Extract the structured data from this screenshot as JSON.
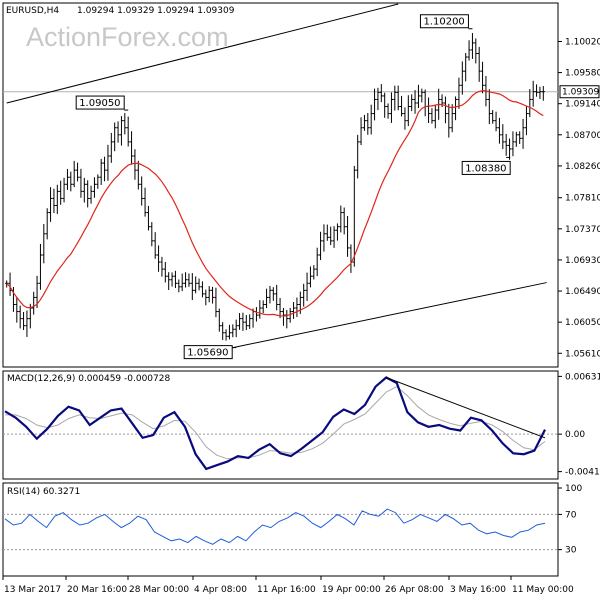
{
  "header": {
    "symbol": "EURUSD,H4",
    "ohlc": "1.09294 1.09329 1.09294 1.09309"
  },
  "watermark": "ActionForex.com",
  "chart_data": [
    {
      "type": "candlestick",
      "panel": "price",
      "ylim": [
        1.0543,
        1.1055
      ],
      "y_ticks": [
        "1.10020",
        "1.09580",
        "1.09140",
        "1.08700",
        "1.08260",
        "1.07810",
        "1.07370",
        "1.06930",
        "1.06490",
        "1.06050",
        "1.05610"
      ],
      "y_tick_values": [
        1.1002,
        1.0958,
        1.0914,
        1.087,
        1.0826,
        1.0781,
        1.0737,
        1.0693,
        1.0649,
        1.0605,
        1.0561
      ],
      "current_price": "1.09309",
      "annotations": [
        {
          "text": "1.10200",
          "value": 1.102,
          "bar": 138
        },
        {
          "text": "1.09050",
          "value": 1.0905,
          "bar": 36
        },
        {
          "text": "1.08380",
          "value": 1.0838,
          "bar": 148
        },
        {
          "text": "1.05690",
          "value": 1.0569,
          "bar": 68
        }
      ],
      "bars": 160,
      "closes": [
        1.066,
        1.065,
        1.063,
        1.062,
        1.061,
        1.06,
        1.061,
        1.0625,
        1.064,
        1.066,
        1.07,
        1.073,
        1.076,
        1.078,
        1.077,
        1.079,
        1.078,
        1.08,
        1.081,
        1.08,
        1.082,
        1.081,
        1.079,
        1.08,
        1.078,
        1.079,
        1.08,
        1.081,
        1.083,
        1.082,
        1.084,
        1.086,
        1.088,
        1.087,
        1.089,
        1.088,
        1.086,
        1.084,
        1.082,
        1.08,
        1.078,
        1.076,
        1.074,
        1.072,
        1.07,
        1.069,
        1.068,
        1.067,
        1.0665,
        1.067,
        1.066,
        1.0655,
        1.066,
        1.0665,
        1.066,
        1.065,
        1.066,
        1.0655,
        1.0645,
        1.064,
        1.065,
        1.064,
        1.062,
        1.06,
        1.059,
        1.0585,
        1.059,
        1.0595,
        1.06,
        1.061,
        1.0605,
        1.06,
        1.061,
        1.062,
        1.0615,
        1.0625,
        1.063,
        1.064,
        1.065,
        1.0645,
        1.063,
        1.062,
        1.0615,
        1.061,
        1.062,
        1.0625,
        1.063,
        1.064,
        1.065,
        1.066,
        1.067,
        1.068,
        1.07,
        1.072,
        1.073,
        1.0725,
        1.072,
        1.0735,
        1.074,
        1.076,
        1.074,
        1.071,
        1.069,
        1.082,
        1.086,
        1.088,
        1.089,
        1.088,
        1.09,
        1.092,
        1.093,
        1.0925,
        1.091,
        1.09,
        1.092,
        1.093,
        1.091,
        1.09,
        1.089,
        1.091,
        1.092,
        1.0915,
        1.0925,
        1.093,
        1.091,
        1.09,
        1.089,
        1.0905,
        1.092,
        1.0915,
        1.09,
        1.088,
        1.09,
        1.092,
        1.094,
        1.096,
        1.098,
        1.099,
        1.1,
        1.0985,
        1.096,
        1.094,
        1.092,
        1.09,
        1.089,
        1.088,
        1.087,
        1.086,
        1.0855,
        1.085,
        1.086,
        1.087,
        1.0865,
        1.088,
        1.09,
        1.092,
        1.0931,
        1.093,
        1.0931,
        1.0931
      ],
      "ma_label": "",
      "trendlines": [
        {
          "from": {
            "bar": 0,
            "value": 1.0915
          },
          "to": {
            "bar": 116,
            "value": 1.1055
          }
        },
        {
          "from": {
            "bar": 66,
            "value": 1.0568
          },
          "to": {
            "bar": 160,
            "value": 1.0661
          }
        }
      ],
      "x_ticks": [
        "13 Mar 2017",
        "20 Mar 16:00",
        "28 Mar 00:00",
        "4 Apr 08:00",
        "11 Apr 16:00",
        "19 Apr 00:00",
        "26 Apr 08:00",
        "3 May 16:00",
        "11 May 00:00"
      ]
    },
    {
      "type": "line",
      "panel": "macd",
      "title": "MACD(12,26,9) 0.000459 -0.000728",
      "y_ticks": [
        "0.006319",
        "0.00",
        "-0.004102"
      ],
      "y_tick_values": [
        0.006319,
        0.0,
        -0.004102
      ],
      "ylim": [
        -0.0048,
        0.0068
      ],
      "series": [
        {
          "name": "MACD",
          "values": [
            0.0025,
            0.0018,
            0.0008,
            -0.0005,
            0.0006,
            0.002,
            0.003,
            0.0026,
            0.001,
            0.0018,
            0.0026,
            0.0028,
            0.0012,
            -0.0004,
            -0.0001,
            0.0018,
            0.0024,
            0.0008,
            -0.0022,
            -0.0038,
            -0.0034,
            -0.003,
            -0.0024,
            -0.0026,
            -0.0017,
            -0.0011,
            -0.0021,
            -0.0024,
            -0.0016,
            -0.0007,
            0.0002,
            0.0019,
            0.0027,
            0.0022,
            0.0032,
            0.0052,
            0.0062,
            0.0056,
            0.0024,
            0.0013,
            0.0008,
            0.001,
            0.0006,
            0.0004,
            0.0018,
            0.0015,
            0.0004,
            -0.001,
            -0.0021,
            -0.0022,
            -0.0018,
            0.0005
          ]
        },
        {
          "name": "Signal",
          "values": [
            0.0021,
            0.0021,
            0.0017,
            0.001,
            0.0007,
            0.001,
            0.0017,
            0.0021,
            0.0018,
            0.0017,
            0.002,
            0.0023,
            0.0021,
            0.0013,
            0.0006,
            0.0009,
            0.0015,
            0.0014,
            0.0002,
            -0.0014,
            -0.0023,
            -0.0027,
            -0.0026,
            -0.0026,
            -0.0023,
            -0.0018,
            -0.0019,
            -0.0021,
            -0.002,
            -0.0016,
            -0.001,
            0.0,
            0.0011,
            0.0016,
            0.0022,
            0.0034,
            0.0046,
            0.0052,
            0.0042,
            0.003,
            0.0021,
            0.0016,
            0.0012,
            0.0009,
            0.0012,
            0.0014,
            0.001,
            0.0003,
            -0.0007,
            -0.0015,
            -0.0017,
            -0.0008
          ]
        }
      ],
      "trendline": {
        "from": {
          "index": 36,
          "value": 0.0062
        },
        "to": {
          "index": 51,
          "value": -0.0004
        }
      }
    },
    {
      "type": "line",
      "panel": "rsi",
      "title": "RSI(14) 60.3271",
      "y_ticks": [
        "100",
        "70",
        "30",
        "0"
      ],
      "y_tick_values": [
        100,
        70,
        30,
        0
      ],
      "ylim": [
        0,
        100
      ],
      "levels": [
        70,
        30
      ],
      "series": [
        {
          "name": "RSI",
          "values": [
            65,
            58,
            60,
            70,
            62,
            55,
            68,
            72,
            64,
            58,
            60,
            66,
            70,
            62,
            55,
            60,
            68,
            64,
            50,
            45,
            40,
            42,
            38,
            45,
            40,
            36,
            42,
            38,
            45,
            40,
            50,
            58,
            55,
            62,
            66,
            72,
            68,
            60,
            55,
            62,
            70,
            65,
            58,
            74,
            70,
            68,
            76,
            72,
            60,
            64,
            70,
            66,
            62,
            70,
            65,
            58,
            60,
            52,
            48,
            50,
            46,
            44,
            50,
            52,
            58,
            60
          ]
        }
      ]
    }
  ]
}
